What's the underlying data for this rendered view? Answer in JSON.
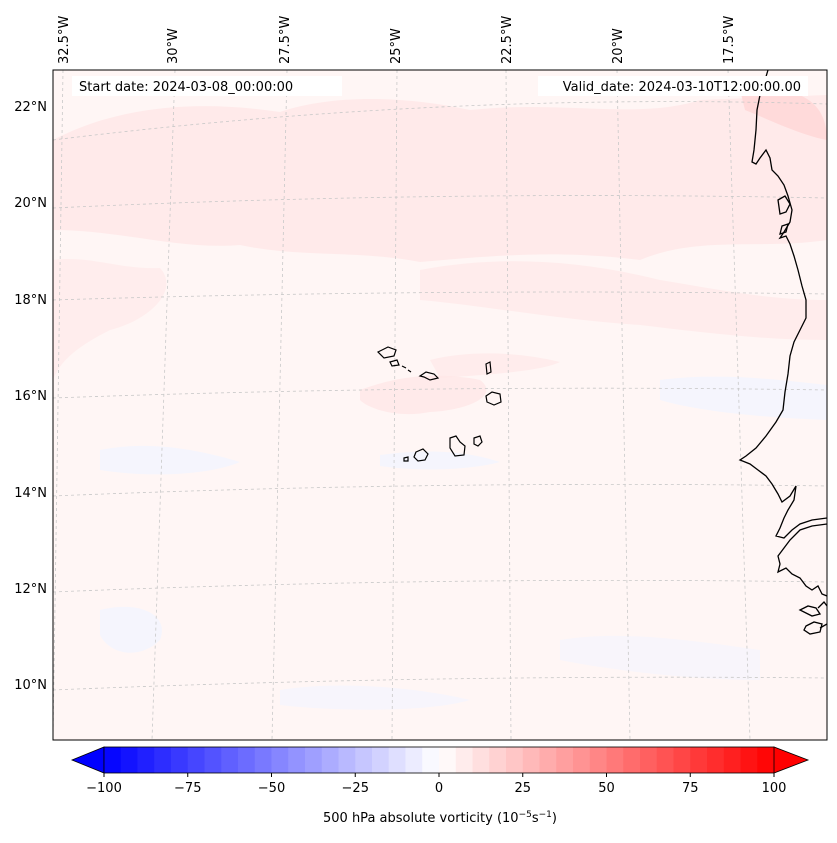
{
  "map": {
    "start_label": "Start date: 2024-03-08_00:00:00",
    "valid_label": "Valid_date: 2024-03-10T12:00:00.00",
    "lon_labels": [
      "32.5°W",
      "30°W",
      "27.5°W",
      "25°W",
      "22.5°W",
      "20°W",
      "17.5°W"
    ],
    "lat_labels": [
      "22°N",
      "20°N",
      "18°N",
      "16°N",
      "14°N",
      "12°N",
      "10°N"
    ]
  },
  "colorbar": {
    "label": "500 hPa absolute vorticity (10",
    "label_exp1": "−5",
    "label_mid": "s",
    "label_exp2": "−1",
    "label_end": ")",
    "ticks": [
      "−100",
      "−75",
      "−50",
      "−25",
      "0",
      "25",
      "50",
      "75",
      "100"
    ],
    "min": -100,
    "max": 100,
    "step": 5,
    "colors": {
      "neg": "#0000ff",
      "zero": "#ffffff",
      "pos": "#ff0000"
    }
  }
}
